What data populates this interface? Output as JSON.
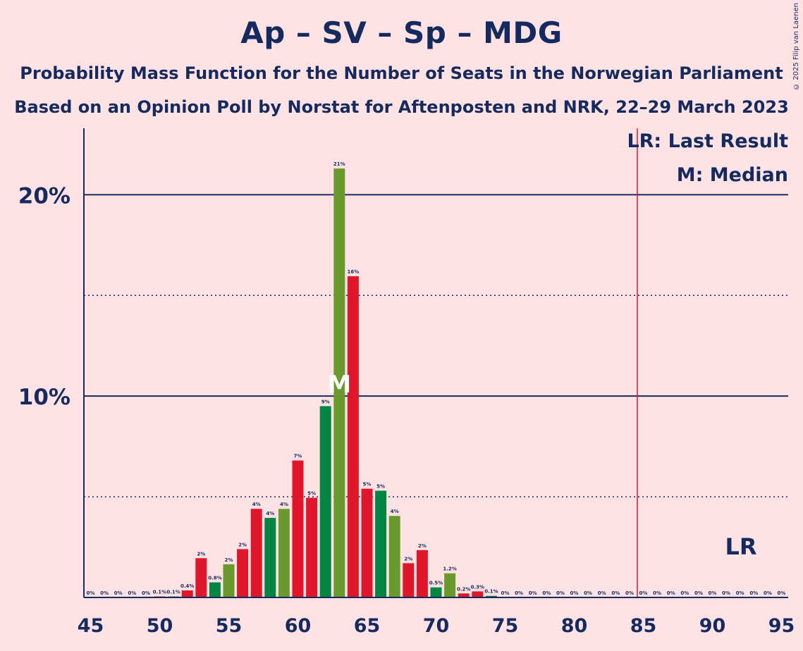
{
  "title": "Ap – SV – Sp – MDG",
  "subtitle1": "Probability Mass Function for the Number of Seats in the Norwegian Parliament",
  "subtitle2": "Based on an Opinion Poll by Norstat for Aftenposten and NRK, 22–29 March 2023",
  "copyright": "© 2025 Filip van Laenen",
  "legend": {
    "last_result": "LR: Last Result",
    "median": "M: Median"
  },
  "lr_label": "LR",
  "median_label": "M",
  "colors": {
    "background": "#FFE3E4",
    "text": "#152A5E",
    "bar_red": "#E0162B",
    "bar_green": "#008542",
    "bar_olive": "#6A9A2D",
    "last_result_line": "#E0162B"
  },
  "chart_data": {
    "type": "bar",
    "x": [
      45,
      46,
      47,
      48,
      49,
      50,
      51,
      52,
      53,
      54,
      55,
      56,
      57,
      58,
      59,
      60,
      61,
      62,
      63,
      64,
      65,
      66,
      67,
      68,
      69,
      70,
      71,
      72,
      73,
      74,
      75,
      76,
      77,
      78,
      79,
      80,
      81,
      82,
      83,
      84,
      85,
      86,
      87,
      88,
      89,
      90,
      91,
      92,
      93,
      94,
      95
    ],
    "values": [
      0,
      0,
      0,
      0,
      0,
      0.1,
      0.1,
      0.4,
      2,
      0.8,
      2,
      2,
      4,
      4,
      4,
      7,
      5,
      9,
      21,
      16,
      5,
      5,
      4,
      2,
      2,
      0.5,
      1.2,
      0.2,
      0.3,
      0.1,
      0,
      0,
      0,
      0,
      0,
      0,
      0,
      0,
      0,
      0,
      0,
      0,
      0,
      0,
      0,
      0,
      0,
      0,
      0,
      0,
      0
    ],
    "heights": [
      0,
      0,
      0,
      0,
      0,
      0.05,
      0.05,
      0.35,
      1.95,
      0.75,
      1.65,
      2.4,
      4.4,
      3.95,
      4.4,
      6.8,
      4.95,
      9.5,
      21.3,
      15.95,
      5.4,
      5.3,
      4.05,
      1.7,
      2.35,
      0.5,
      1.2,
      0.2,
      0.3,
      0.08,
      0,
      0,
      0,
      0,
      0,
      0,
      0,
      0,
      0,
      0,
      0,
      0,
      0,
      0,
      0,
      0,
      0,
      0,
      0,
      0,
      0
    ],
    "labels": [
      "0%",
      "0%",
      "0%",
      "0%",
      "0%",
      "0.1%",
      "0.1%",
      "0.4%",
      "2%",
      "0.8%",
      "2%",
      "2%",
      "4%",
      "4%",
      "4%",
      "7%",
      "5%",
      "9%",
      "21%",
      "16%",
      "5%",
      "5%",
      "4%",
      "2%",
      "2%",
      "0.5%",
      "1.2%",
      "0.2%",
      "0.3%",
      "0.1%",
      "0%",
      "0%",
      "0%",
      "0%",
      "0%",
      "0%",
      "0%",
      "0%",
      "0%",
      "0%",
      "0%",
      "0%",
      "0%",
      "0%",
      "0%",
      "0%",
      "0%",
      "0%",
      "0%",
      "0%",
      "0%"
    ],
    "bar_colors": [
      "red",
      "red",
      "green",
      "olive",
      "red",
      "red",
      "green",
      "red",
      "red",
      "green",
      "olive",
      "red",
      "red",
      "green",
      "olive",
      "red",
      "red",
      "green",
      "olive",
      "red",
      "red",
      "green",
      "olive",
      "red",
      "red",
      "green",
      "olive",
      "red",
      "red",
      "green",
      "olive",
      "red",
      "red",
      "green",
      "olive",
      "red",
      "red",
      "green",
      "olive",
      "red",
      "red",
      "green",
      "olive",
      "red",
      "red",
      "green",
      "olive",
      "red",
      "red",
      "green",
      "olive"
    ],
    "x_ticks": [
      "45",
      "50",
      "55",
      "60",
      "65",
      "70",
      "75",
      "80",
      "85",
      "90",
      "95"
    ],
    "y_ticks": [
      "10%",
      "20%"
    ],
    "y_tick_values": [
      10,
      20
    ],
    "y_dotted_values": [
      5,
      15
    ],
    "xlim": [
      45,
      95
    ],
    "ylim": [
      0,
      23.3
    ],
    "median_seat": 63,
    "last_result_seat": 85
  }
}
